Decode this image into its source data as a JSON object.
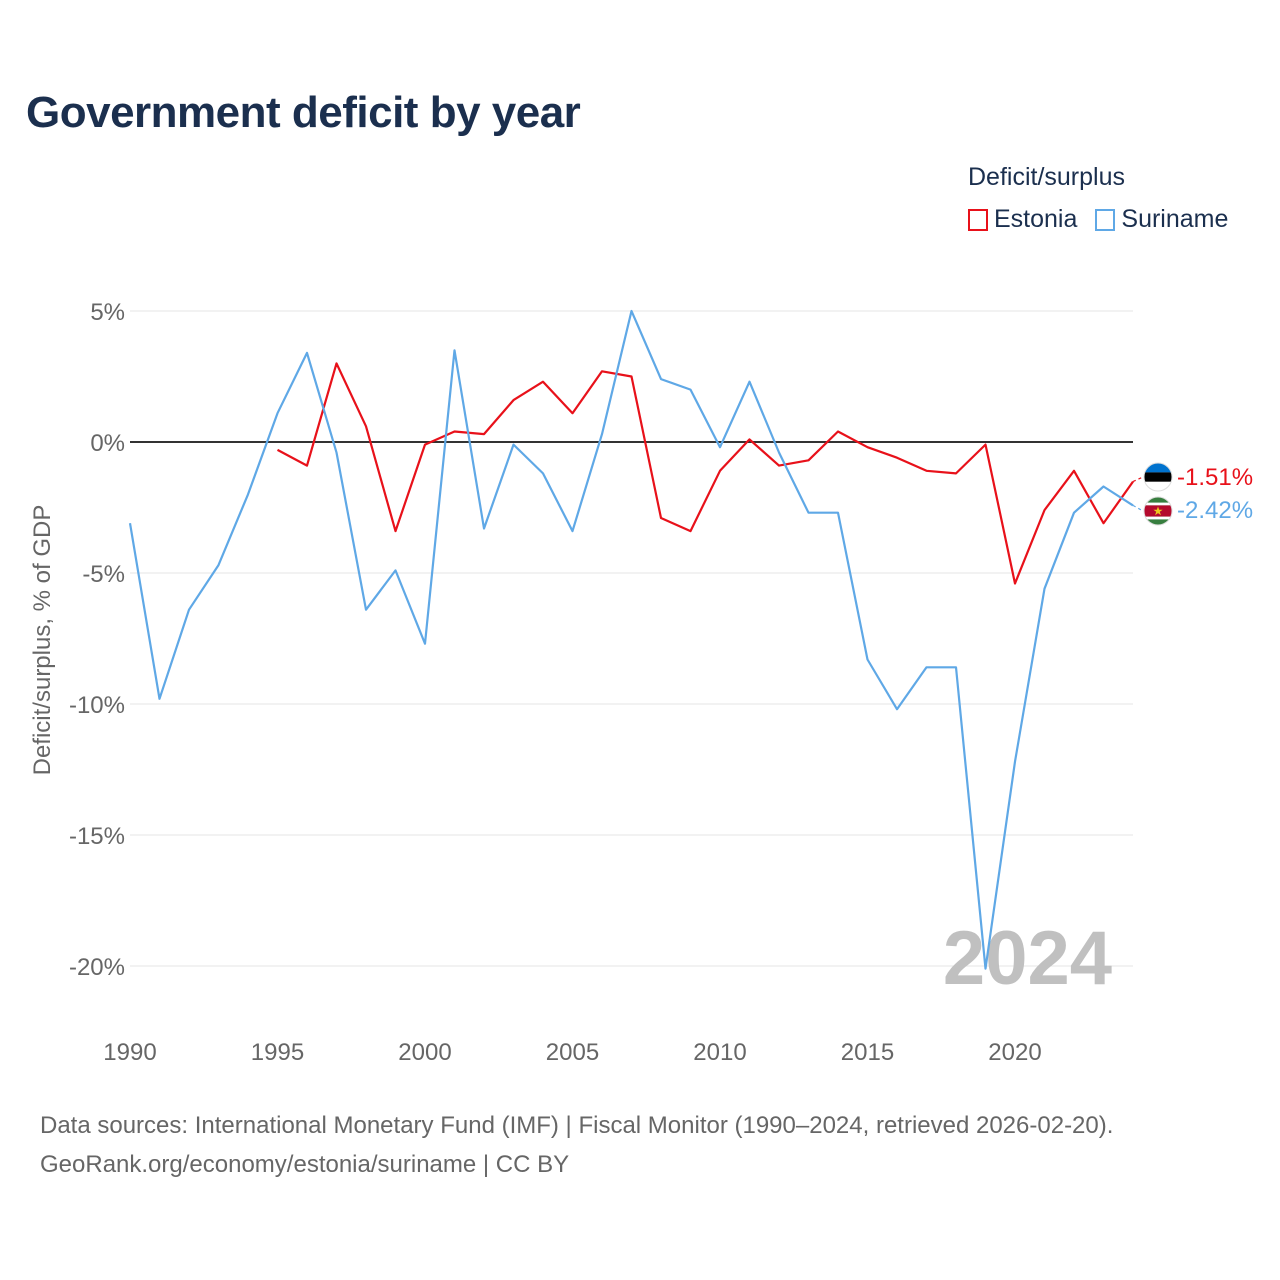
{
  "title": "Government deficit by year",
  "legend": {
    "title": "Deficit/surplus",
    "items": [
      {
        "label": "Estonia",
        "color": "#e8111a"
      },
      {
        "label": "Suriname",
        "color": "#5fa8e6"
      }
    ]
  },
  "chart_data": {
    "type": "line",
    "title": "Government deficit by year",
    "xlabel": "",
    "ylabel": "Deficit/surplus, % of GDP",
    "xlim": [
      1990,
      2024
    ],
    "ylim": [
      -21,
      5.5
    ],
    "x_ticks": [
      1990,
      1995,
      2000,
      2005,
      2010,
      2015,
      2020
    ],
    "x_tick_labels": [
      "1990",
      "1995",
      "2000",
      "2005",
      "2010",
      "2015",
      "2020"
    ],
    "y_ticks": [
      5,
      0,
      -5,
      -10,
      -15,
      -20
    ],
    "y_tick_labels": [
      "5%",
      "0%",
      "-5%",
      "-10%",
      "-15%",
      "-20%"
    ],
    "grid": true,
    "year_watermark": "2024",
    "series": [
      {
        "name": "Estonia",
        "color": "#e8111a",
        "end_label": "-1.51%",
        "x": [
          1995,
          1996,
          1997,
          1998,
          1999,
          2000,
          2001,
          2002,
          2003,
          2004,
          2005,
          2006,
          2007,
          2008,
          2009,
          2010,
          2011,
          2012,
          2013,
          2014,
          2015,
          2016,
          2017,
          2018,
          2019,
          2020,
          2021,
          2022,
          2023,
          2024
        ],
        "values": [
          -0.3,
          -0.9,
          3.0,
          0.6,
          -3.4,
          -0.1,
          0.4,
          0.3,
          1.6,
          2.3,
          1.1,
          2.7,
          2.5,
          -2.9,
          -3.4,
          -1.1,
          0.1,
          -0.9,
          -0.7,
          0.4,
          -0.2,
          -0.6,
          -1.1,
          -1.2,
          -0.1,
          -5.4,
          -2.6,
          -1.1,
          -3.1,
          -1.51
        ]
      },
      {
        "name": "Suriname",
        "color": "#5fa8e6",
        "end_label": "-2.42%",
        "x": [
          1990,
          1991,
          1992,
          1993,
          1994,
          1995,
          1996,
          1997,
          1998,
          1999,
          2000,
          2001,
          2002,
          2003,
          2004,
          2005,
          2006,
          2007,
          2008,
          2009,
          2010,
          2011,
          2012,
          2013,
          2014,
          2015,
          2016,
          2017,
          2018,
          2019,
          2020,
          2021,
          2022,
          2023,
          2024
        ],
        "values": [
          -3.1,
          -9.8,
          -6.4,
          -4.7,
          -2.0,
          1.1,
          3.4,
          -0.4,
          -6.4,
          -4.9,
          -7.7,
          3.5,
          -3.3,
          -0.1,
          -1.2,
          -3.4,
          0.3,
          5.0,
          2.4,
          2.0,
          -0.2,
          2.3,
          -0.4,
          -2.7,
          -2.7,
          -8.3,
          -10.2,
          -8.6,
          -8.6,
          -20.1,
          -12.2,
          -5.6,
          -2.7,
          -1.7,
          -2.42
        ]
      }
    ]
  },
  "source": {
    "line1": "Data sources: International Monetary Fund (IMF) | Fiscal Monitor (1990–2024, retrieved 2026-02-20).",
    "line2": "GeoRank.org/economy/estonia/suriname | CC BY"
  }
}
